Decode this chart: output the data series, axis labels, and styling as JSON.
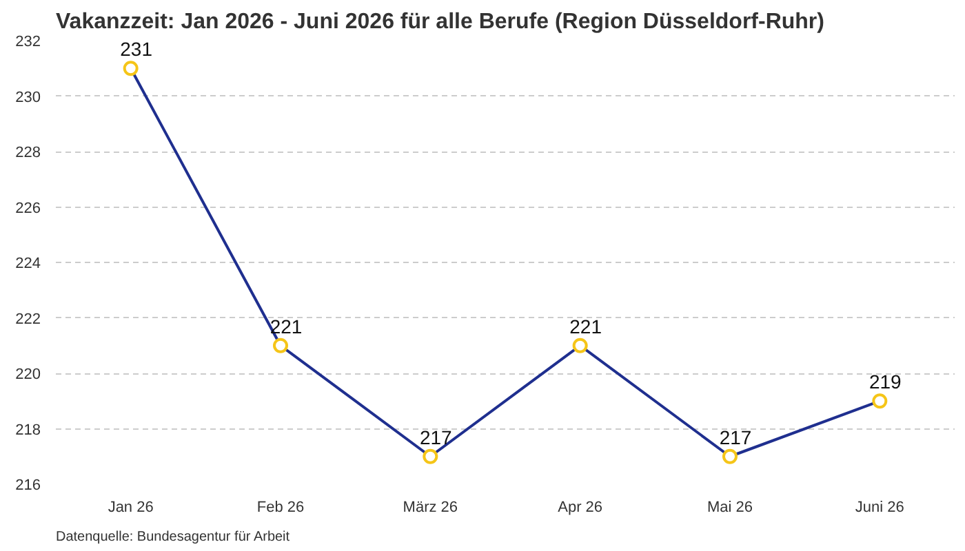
{
  "chart_data": {
    "type": "line",
    "title": "Vakanzzeit: Jan 2026 - Juni 2026 für alle Berufe (Region Düsseldorf-Ruhr)",
    "categories": [
      "Jan 26",
      "Feb 26",
      "März 26",
      "Apr 26",
      "Mai 26",
      "Juni 26"
    ],
    "series": [
      {
        "color": "#1f2f8f",
        "values": [
          231,
          221,
          217,
          221,
          217,
          219
        ]
      }
    ],
    "marker": "circle",
    "data_labels": true,
    "ylim": [
      216,
      232
    ],
    "yticks": [
      216,
      218,
      220,
      222,
      224,
      226,
      228,
      230,
      232
    ],
    "grid": "y",
    "annotations": [
      "Datenquelle: Bundesagentur für Arbeit"
    ]
  }
}
